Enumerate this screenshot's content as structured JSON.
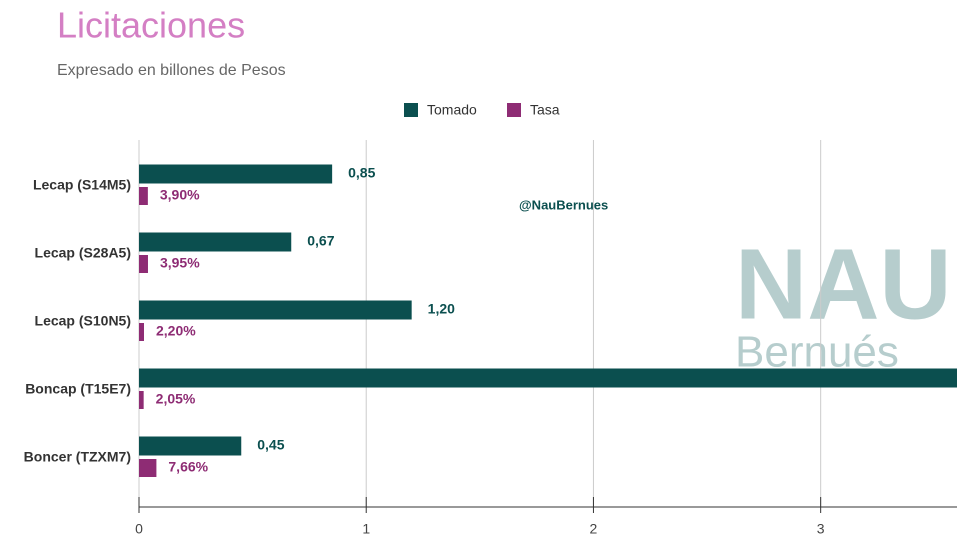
{
  "chart_data": {
    "type": "bar",
    "orientation": "horizontal",
    "title": "Licitaciones",
    "subtitle": "Expresado en billones de Pesos",
    "categories": [
      "Lecap (S14M5)",
      "Lecap (S28A5)",
      "Lecap (S10N5)",
      "Boncap (T15E7)",
      "Boncer (TZXM7)"
    ],
    "series": [
      {
        "name": "Tomado",
        "color": "#0b4f4f",
        "values": [
          0.85,
          0.67,
          1.2,
          3.6,
          0.45
        ],
        "value_labels": [
          "0,85",
          "0,67",
          "1,20",
          null,
          "0,45"
        ]
      },
      {
        "name": "Tasa",
        "color": "#8e2c74",
        "values": [
          0.039,
          0.0395,
          0.022,
          0.0205,
          0.0766
        ],
        "value_labels": [
          "3,90%",
          "3,95%",
          "2,20%",
          "2,05%",
          "7,66%"
        ]
      }
    ],
    "xlim": [
      0,
      3.6
    ],
    "xticks": [
      0,
      1,
      2,
      3
    ],
    "grid": true,
    "legend": "top",
    "watermark": {
      "handle": "@NauBernues",
      "logo_top": "NAU",
      "logo_bottom": "Bernués"
    }
  }
}
